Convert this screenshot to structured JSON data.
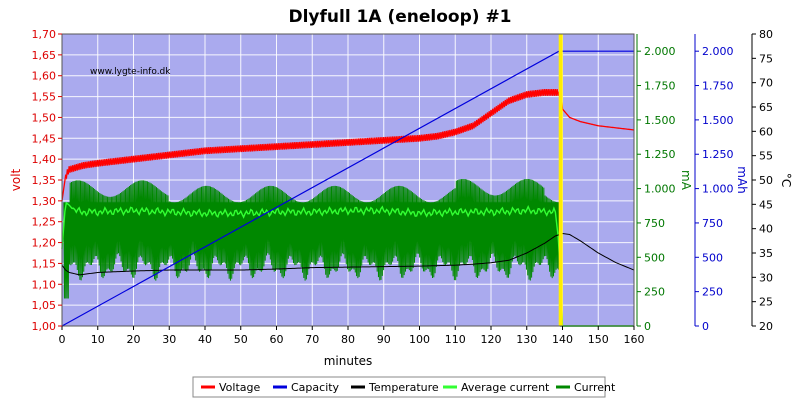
{
  "chart_data": {
    "type": "line",
    "title": "Dlyfull 1A (eneloop) #1",
    "watermark": "www.lygte-info.dk",
    "xlabel": "minutes",
    "xlim": [
      0,
      160
    ],
    "xticks": [
      0,
      10,
      20,
      30,
      40,
      50,
      60,
      70,
      80,
      90,
      100,
      110,
      120,
      130,
      140,
      150,
      160
    ],
    "grid": true,
    "background_color": "#aaaaee",
    "axes": {
      "volt": {
        "label": "volt",
        "color": "#dd0000",
        "range": [
          1.0,
          1.7
        ],
        "ticks": [
          "1,00",
          "1,05",
          "1,10",
          "1,15",
          "1,20",
          "1,25",
          "1,30",
          "1,35",
          "1,40",
          "1,45",
          "1,50",
          "1,55",
          "1,60",
          "1,65",
          "1,70"
        ]
      },
      "mA": {
        "label": "mA",
        "color": "#007700",
        "range": [
          0,
          2125
        ],
        "ticks": [
          "0",
          "250",
          "500",
          "750",
          "1.000",
          "1.250",
          "1.500",
          "1.750",
          "2.000"
        ]
      },
      "mAh": {
        "label": "mAh",
        "color": "#0000cc",
        "range": [
          0,
          2125
        ],
        "ticks": [
          "0",
          "250",
          "500",
          "750",
          "1.000",
          "1.250",
          "1.500",
          "1.750",
          "2.000"
        ]
      },
      "celsius": {
        "label": "°C",
        "color": "#000000",
        "range": [
          20,
          80
        ],
        "ticks": [
          "20",
          "25",
          "30",
          "35",
          "40",
          "45",
          "50",
          "55",
          "60",
          "65",
          "70",
          "75",
          "80"
        ]
      }
    },
    "marker": {
      "x": 139.5,
      "color": "#ffee00"
    },
    "series": [
      {
        "name": "Voltage",
        "axis": "volt",
        "color": "#ff0000",
        "x": [
          0,
          1,
          2,
          4,
          6,
          10,
          20,
          30,
          40,
          50,
          60,
          70,
          80,
          90,
          100,
          105,
          110,
          115,
          120,
          125,
          130,
          135,
          139,
          139.5,
          140,
          142,
          145,
          150,
          155,
          160
        ],
        "y": [
          1.3,
          1.36,
          1.375,
          1.38,
          1.385,
          1.39,
          1.4,
          1.41,
          1.42,
          1.425,
          1.43,
          1.435,
          1.44,
          1.445,
          1.45,
          1.455,
          1.465,
          1.48,
          1.51,
          1.54,
          1.555,
          1.56,
          1.56,
          1.57,
          1.52,
          1.5,
          1.49,
          1.48,
          1.475,
          1.47
        ],
        "noise_until": 139,
        "noise_amp": 0.008
      },
      {
        "name": "Capacity",
        "axis": "mAh",
        "color": "#0000dd",
        "x": [
          0,
          139,
          160
        ],
        "y": [
          0,
          2000,
          2000
        ]
      },
      {
        "name": "Temperature",
        "axis": "celsius",
        "color": "#000000",
        "x": [
          0,
          1,
          2,
          5,
          10,
          20,
          30,
          40,
          50,
          60,
          70,
          80,
          90,
          100,
          110,
          115,
          120,
          125,
          130,
          135,
          138,
          140,
          142,
          145,
          150,
          155,
          160
        ],
        "y": [
          32.5,
          31.5,
          31,
          30.5,
          31,
          31.3,
          31.5,
          31.5,
          31.5,
          31.7,
          32,
          32.1,
          32.2,
          32.3,
          32.5,
          32.7,
          33,
          33.5,
          35,
          37,
          38.5,
          39,
          38.8,
          37.5,
          35,
          33,
          31.5
        ]
      },
      {
        "name": "Average current",
        "axis": "mA",
        "color": "#33ff33",
        "x": [
          0,
          1,
          2,
          3,
          5,
          10,
          20,
          30,
          40,
          50,
          60,
          70,
          80,
          90,
          100,
          110,
          120,
          130,
          138,
          139,
          140,
          160
        ],
        "y": [
          560,
          900,
          880,
          850,
          830,
          830,
          840,
          830,
          820,
          820,
          830,
          830,
          840,
          840,
          820,
          830,
          830,
          840,
          830,
          600,
          0,
          0
        ],
        "noise_until": 138,
        "noise_amp": 18
      },
      {
        "name": "Current",
        "axis": "mA",
        "color": "#008800",
        "x": [
          0,
          139,
          139.5,
          140,
          160
        ],
        "y": [
          830,
          830,
          0,
          0,
          0
        ],
        "band_low": 430,
        "band_high": 1000,
        "band_until": 139
      }
    ],
    "legend": {
      "placement": "bottom",
      "entries": [
        "Voltage",
        "Capacity",
        "Temperature",
        "Average current",
        "Current"
      ]
    }
  }
}
